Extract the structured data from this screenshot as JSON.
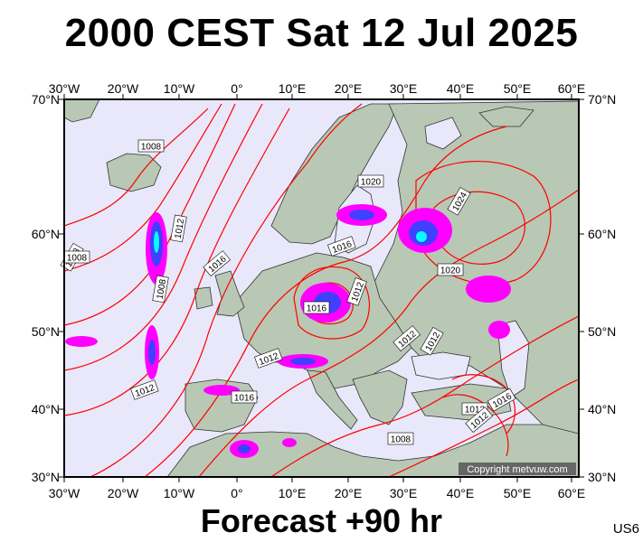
{
  "title": "2000 CEST Sat 12 Jul 2025",
  "footer": "Forecast +90 hr",
  "code": "US6",
  "copyright": "Copyright metvuw.com",
  "longitudes": [
    "30°W",
    "20°W",
    "10°W",
    "0°",
    "10°E",
    "20°E",
    "30°E",
    "40°E",
    "50°E",
    "60°E"
  ],
  "latitudes": [
    "70°N",
    "60°N",
    "50°N",
    "40°N",
    "30°N"
  ],
  "isobar_labels": [
    "1008",
    "1020",
    "1024",
    "1012",
    "1008",
    "1008",
    "1016",
    "1016",
    "1020",
    "1012",
    "1008",
    "1016",
    "1012",
    "1012",
    "1012",
    "1016",
    "1016",
    "1012",
    "1012",
    "1008",
    "1012"
  ],
  "colors": {
    "sea": "#e8e8fa",
    "land": "#b8c8b4",
    "isobar": "#ff0000",
    "precip_light": "#ff00ff",
    "precip_mid": "#4040ff",
    "precip_heavy": "#00ffff"
  }
}
